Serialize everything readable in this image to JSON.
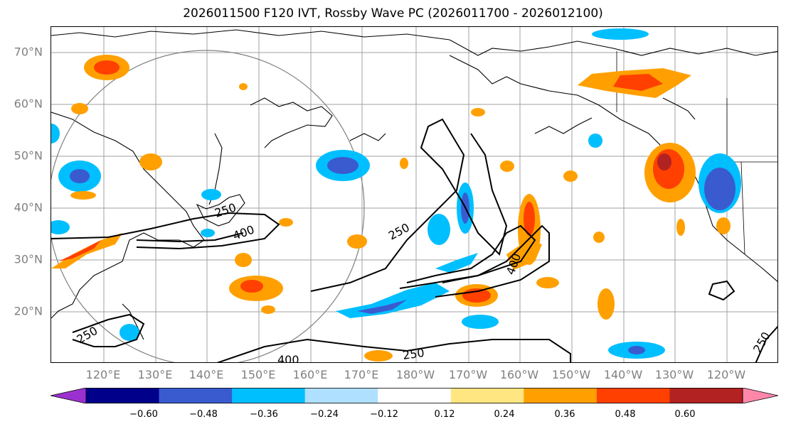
{
  "title": "2026011500 F120 IVT, Rossby Wave PC (2026011700 - 2026012100)",
  "latitude_labels": [
    "70°N",
    "60°N",
    "50°N",
    "40°N",
    "30°N",
    "20°N"
  ],
  "longitude_labels": [
    "120°E",
    "130°E",
    "140°E",
    "150°E",
    "160°E",
    "170°E",
    "180°W",
    "170°W",
    "160°W",
    "150°W",
    "140°W",
    "130°W",
    "120°W"
  ],
  "contour_labels": [
    "250",
    "400",
    "250",
    "400",
    "250",
    "400",
    "250",
    "250"
  ],
  "colorbar": {
    "tick_labels": [
      "−0.60",
      "−0.48",
      "−0.36",
      "−0.24",
      "−0.12",
      "0.12",
      "0.24",
      "0.36",
      "0.48",
      "0.60"
    ],
    "colors": [
      "#9b30d0",
      "#00008b",
      "#3a5bd0",
      "#00bfff",
      "#b0e0ff",
      "#ffffff",
      "#ffe680",
      "#ffa000",
      "#ff4000",
      "#b22222",
      "#ff88aa"
    ]
  },
  "colors": {
    "positive_strong": "#b22222",
    "positive_mid": "#ff4000",
    "positive_low": "#ffa000",
    "positive_faint": "#ffe680",
    "negative_faint": "#b0e0ff",
    "negative_low": "#00bfff",
    "negative_mid": "#3a5bd0",
    "negative_strong": "#00008b",
    "gridline": "#a0a0a0",
    "circle": "#808080"
  }
}
